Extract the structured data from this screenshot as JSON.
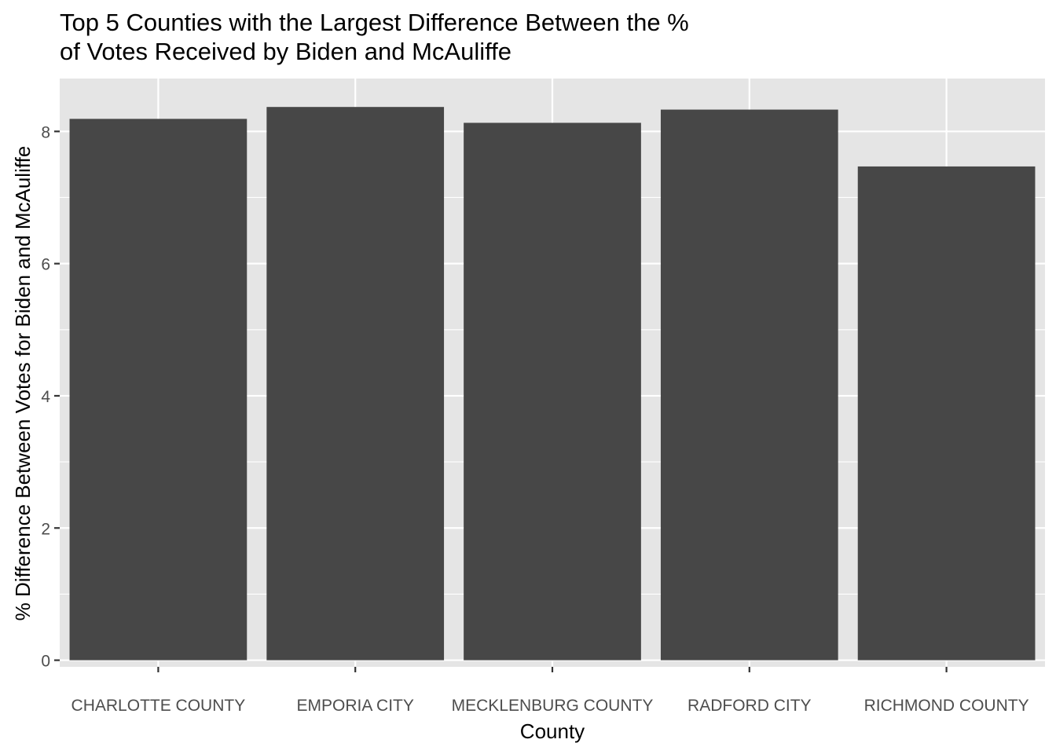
{
  "chart_data": {
    "type": "bar",
    "title_lines": [
      "Top 5 Counties with the Largest Difference Between the %",
      "of Votes Received by Biden and McAuliffe"
    ],
    "xlabel": "County",
    "ylabel": "% Difference Between Votes for Biden and McAuliffe",
    "categories": [
      "CHARLOTTE COUNTY",
      "EMPORIA CITY",
      "MECKLENBURG COUNTY",
      "RADFORD CITY",
      "RICHMOND COUNTY"
    ],
    "values": [
      8.19,
      8.37,
      8.13,
      8.33,
      7.47
    ],
    "ylim": [
      -0.1,
      8.8
    ],
    "yticks": [
      0,
      2,
      4,
      6,
      8
    ],
    "grid": true,
    "colors": {
      "bar": "#474747",
      "panel": "#e5e5e5",
      "grid": "#ffffff",
      "text": "#000000",
      "tick_text": "#4d4d4d",
      "tick_mark": "#333333"
    }
  }
}
